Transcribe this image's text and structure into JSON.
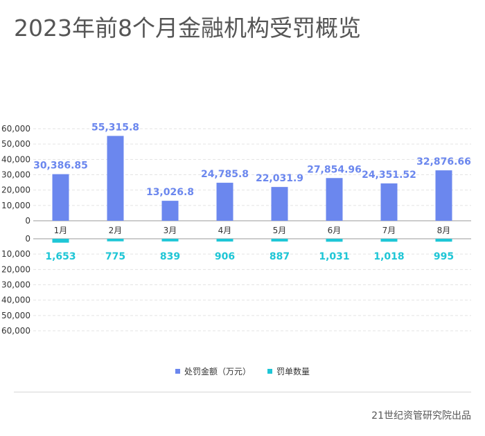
{
  "title": "2023年前8个月金融机构受罚概览",
  "source": "21世纪资管研究院出品",
  "colors": {
    "amount": "#6b87ee",
    "count": "#1ec6d6",
    "grid": "#e3e3e3",
    "axis": "#999999",
    "text": "#333333"
  },
  "chart_data": {
    "type": "bar",
    "categories": [
      "1月",
      "2月",
      "3月",
      "4月",
      "5月",
      "6月",
      "7月",
      "8月"
    ],
    "series": [
      {
        "name": "处罚金额（万元）",
        "values": [
          30386.85,
          55315.8,
          13026.8,
          24785.8,
          22031.9,
          27854.96,
          24351.52,
          32876.66
        ],
        "labels": [
          "30,386.85",
          "55,315.8",
          "13,026.8",
          "24,785.8",
          "22,031.9",
          "27,854.96",
          "24,351.52",
          "32,876.66"
        ]
      },
      {
        "name": "罚单数量",
        "values": [
          1653,
          775,
          839,
          906,
          887,
          1031,
          1018,
          995
        ],
        "labels": [
          "1,653",
          "775",
          "839",
          "906",
          "887",
          "1,031",
          "1,018",
          "995"
        ]
      }
    ],
    "upper_axis": {
      "ticks": [
        "0",
        "10,000",
        "20,000",
        "30,000",
        "40,000",
        "50,000",
        "60,000"
      ],
      "ylim": [
        0,
        60000
      ]
    },
    "lower_axis": {
      "ticks": [
        "0",
        "10,000",
        "20,000",
        "30,000",
        "40,000",
        "50,000",
        "60,000"
      ],
      "ylim": [
        0,
        60000
      ],
      "direction": "downward"
    },
    "grid": true,
    "legend": "bottom-center"
  }
}
